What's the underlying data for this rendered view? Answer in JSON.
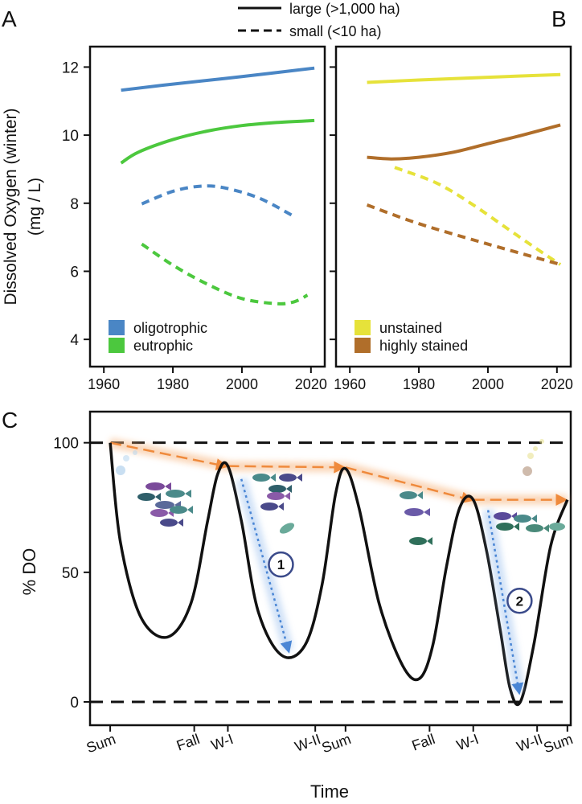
{
  "legend_top": {
    "large": "large (>1,000 ha)",
    "small": "small (<10 ha)"
  },
  "panel_labels": {
    "a": "A",
    "b": "B",
    "c": "C"
  },
  "chart_data": [
    {
      "id": "A",
      "type": "line",
      "ylabel_line1": "Dissolved Oxygen (winter)",
      "ylabel_line2": "(mg / L)",
      "xlim": [
        1956,
        2024
      ],
      "ylim": [
        3.2,
        12.6
      ],
      "xticks": [
        1960,
        1980,
        2000,
        2020
      ],
      "yticks": [
        4,
        6,
        8,
        10,
        12
      ],
      "legend": [
        {
          "label": "oligotrophic",
          "color": "#4a86c5"
        },
        {
          "label": "eutrophic",
          "color": "#4cc83e"
        }
      ],
      "series": [
        {
          "name": "oligotrophic large",
          "color": "#4a86c5",
          "dash": false,
          "x": [
            1965,
            1980,
            2000,
            2021
          ],
          "y": [
            11.32,
            11.5,
            11.72,
            11.97
          ]
        },
        {
          "name": "eutrophic large",
          "color": "#4cc83e",
          "dash": false,
          "x": [
            1965,
            1970,
            1980,
            1990,
            2000,
            2010,
            2021
          ],
          "y": [
            9.18,
            9.5,
            9.87,
            10.12,
            10.28,
            10.37,
            10.43
          ]
        },
        {
          "name": "oligotrophic small",
          "color": "#4a86c5",
          "dash": true,
          "x": [
            1971,
            1980,
            1988,
            1995,
            2005,
            2015
          ],
          "y": [
            7.98,
            8.35,
            8.5,
            8.45,
            8.15,
            7.62
          ]
        },
        {
          "name": "eutrophic small",
          "color": "#4cc83e",
          "dash": true,
          "x": [
            1971,
            1980,
            1990,
            2000,
            2010,
            2015,
            2019
          ],
          "y": [
            6.8,
            6.18,
            5.62,
            5.2,
            5.05,
            5.1,
            5.3
          ]
        }
      ]
    },
    {
      "id": "B",
      "type": "line",
      "xlim": [
        1956,
        2024
      ],
      "ylim": [
        3.2,
        12.6
      ],
      "xticks": [
        1960,
        1980,
        2000,
        2020
      ],
      "yticks": [
        4,
        6,
        8,
        10,
        12
      ],
      "legend": [
        {
          "label": "unstained",
          "color": "#e6e23a"
        },
        {
          "label": "highly stained",
          "color": "#b06e2a"
        }
      ],
      "series": [
        {
          "name": "unstained large",
          "color": "#e6e23a",
          "dash": false,
          "x": [
            1965,
            1980,
            2000,
            2021
          ],
          "y": [
            11.55,
            11.62,
            11.7,
            11.78
          ]
        },
        {
          "name": "stained large",
          "color": "#b06e2a",
          "dash": false,
          "x": [
            1965,
            1972,
            1980,
            1990,
            2000,
            2010,
            2021
          ],
          "y": [
            9.35,
            9.3,
            9.35,
            9.5,
            9.75,
            10.0,
            10.3
          ]
        },
        {
          "name": "unstained small",
          "color": "#e6e23a",
          "dash": true,
          "x": [
            1973,
            1985,
            1995,
            2005,
            2015,
            2021
          ],
          "y": [
            9.05,
            8.6,
            8.0,
            7.3,
            6.6,
            6.2
          ]
        },
        {
          "name": "stained small",
          "color": "#b06e2a",
          "dash": true,
          "x": [
            1965,
            1980,
            2000,
            2021
          ],
          "y": [
            7.95,
            7.4,
            6.8,
            6.2
          ]
        }
      ]
    },
    {
      "id": "C",
      "type": "line",
      "ylabel": "% DO",
      "xlabel": "Time",
      "xlim": [
        -0.3,
        6.85
      ],
      "ylim": [
        -9,
        112
      ],
      "yticks": [
        0,
        50,
        100
      ],
      "xticks": [
        {
          "label": "Sum",
          "x": 0
        },
        {
          "label": "Fall",
          "x": 1.25
        },
        {
          "label": "W-I",
          "x": 1.75
        },
        {
          "label": "W-II",
          "x": 3.05
        },
        {
          "label": "Sum",
          "x": 3.5
        },
        {
          "label": "Fall",
          "x": 4.75
        },
        {
          "label": "W-I",
          "x": 5.4
        },
        {
          "label": "W-II",
          "x": 6.35
        },
        {
          "label": "Sum",
          "x": 6.8
        }
      ],
      "reference_lines": [
        0,
        100
      ],
      "do_curve": {
        "x": [
          0,
          0.15,
          0.45,
          0.85,
          1.2,
          1.45,
          1.6,
          1.75,
          1.95,
          2.2,
          2.55,
          2.9,
          3.15,
          3.35,
          3.5,
          3.7,
          4.0,
          4.35,
          4.6,
          4.8,
          5.0,
          5.2,
          5.4,
          5.6,
          5.8,
          5.95,
          6.1,
          6.3,
          6.55,
          6.8
        ],
        "y": [
          100,
          62,
          33,
          25,
          38,
          70,
          88,
          91,
          70,
          35,
          18,
          22,
          45,
          80,
          90,
          75,
          38,
          14,
          9,
          22,
          52,
          75,
          78,
          58,
          28,
          5,
          0,
          22,
          60,
          78
        ]
      },
      "baseline_arrow": {
        "x": [
          0,
          1.75,
          3.5,
          5.4,
          6.8
        ],
        "y": [
          100,
          91,
          90.5,
          78,
          78
        ]
      },
      "decline_arrows": [
        {
          "label": "1",
          "x": [
            1.95,
            2.65
          ],
          "y": [
            86,
            20
          ]
        },
        {
          "label": "2",
          "x": [
            5.62,
            6.08
          ],
          "y": [
            74,
            4
          ]
        }
      ]
    }
  ]
}
